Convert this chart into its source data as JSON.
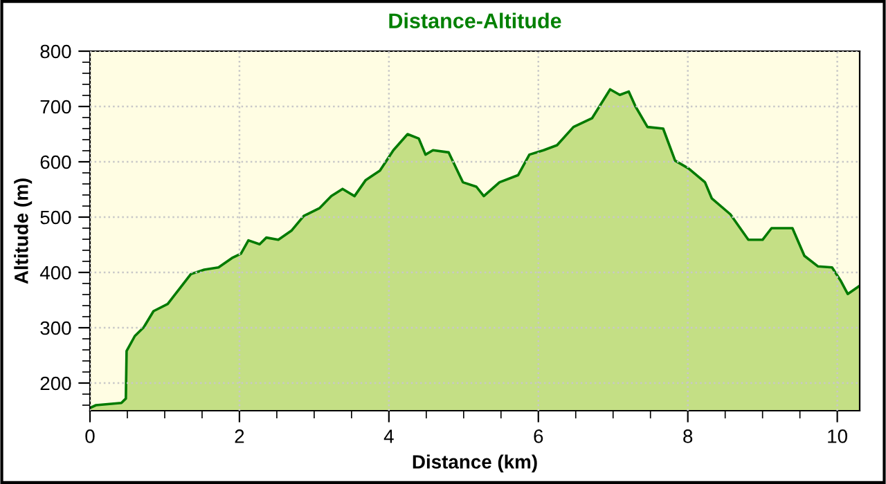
{
  "chart_data": {
    "type": "area",
    "title": "Distance-Altitude",
    "xlabel": "Distance (km)",
    "ylabel": "Altitude (m)",
    "xlim": [
      0,
      10.3
    ],
    "xticks": [
      0,
      2,
      4,
      6,
      8,
      10
    ],
    "ylim": [
      150,
      800
    ],
    "yticks": [
      200,
      300,
      400,
      500,
      600,
      700,
      800
    ],
    "grid": true,
    "legend": false,
    "series": [
      {
        "color": "#007a00",
        "x": [
          0.0,
          0.08,
          0.42,
          0.48,
          0.49,
          0.6,
          0.72,
          0.85,
          1.04,
          1.16,
          1.35,
          1.53,
          1.72,
          1.9,
          2.02,
          2.12,
          2.27,
          2.36,
          2.52,
          2.7,
          2.86,
          3.07,
          3.23,
          3.38,
          3.54,
          3.69,
          3.88,
          4.06,
          4.25,
          4.4,
          4.49,
          4.59,
          4.8,
          4.99,
          5.17,
          5.27,
          5.48,
          5.73,
          5.88,
          6.07,
          6.25,
          6.47,
          6.72,
          6.96,
          7.09,
          7.21,
          7.3,
          7.46,
          7.67,
          7.83,
          8.01,
          8.23,
          8.32,
          8.57,
          8.81,
          9.0,
          9.12,
          9.4,
          9.56,
          9.74,
          9.93,
          10.05,
          10.14,
          10.3
        ],
        "values": [
          155,
          160,
          164,
          172,
          258,
          285,
          301,
          330,
          343,
          364,
          397,
          405,
          409,
          426,
          434,
          458,
          451,
          463,
          459,
          476,
          502,
          516,
          538,
          551,
          538,
          567,
          584,
          621,
          650,
          642,
          613,
          621,
          617,
          563,
          555,
          538,
          563,
          576,
          613,
          621,
          630,
          663,
          679,
          731,
          721,
          727,
          700,
          663,
          660,
          602,
          588,
          563,
          534,
          505,
          459,
          459,
          480,
          480,
          430,
          411,
          409,
          384,
          361,
          376
        ]
      }
    ]
  }
}
